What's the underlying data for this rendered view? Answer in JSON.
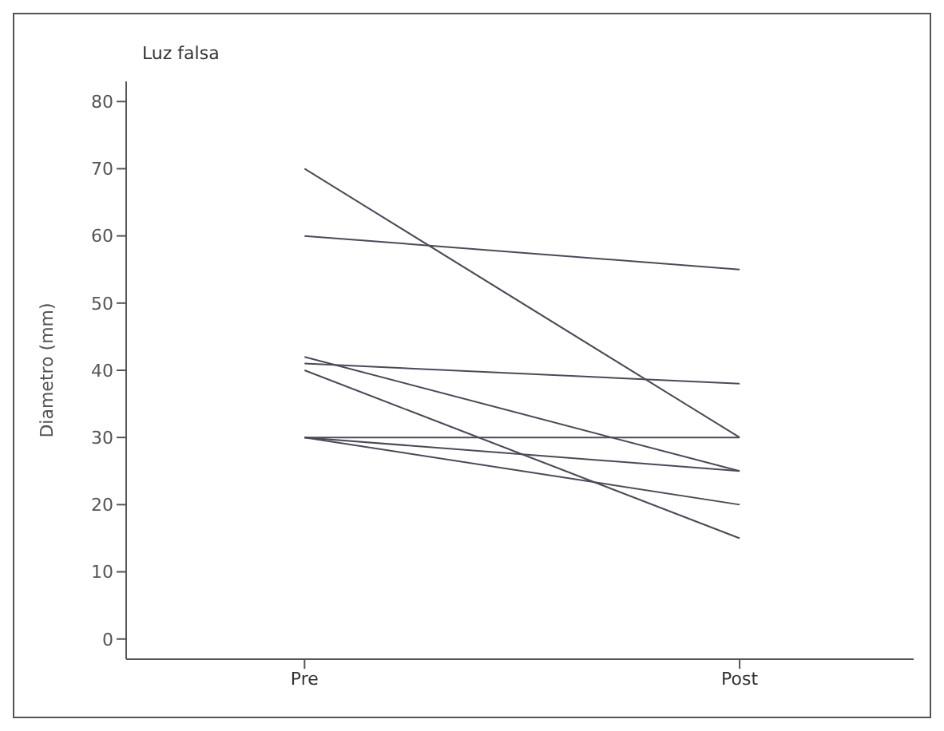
{
  "chart_data": {
    "type": "line",
    "title": "Luz falsa",
    "ylabel": "Diametro (mm)",
    "categories": [
      "Pre",
      "Post"
    ],
    "series": [
      {
        "color": "#4a4a58",
        "values": [
          70,
          30
        ]
      },
      {
        "color": "#4a4a58",
        "values": [
          60,
          55
        ]
      },
      {
        "color": "#4a4a58",
        "values": [
          41,
          38
        ]
      },
      {
        "color": "#4a4a58",
        "values": [
          42,
          25
        ]
      },
      {
        "color": "#4a4a58",
        "values": [
          40,
          15
        ]
      },
      {
        "color": "#4a4a58",
        "values": [
          30,
          30
        ]
      },
      {
        "color": "#4a4a58",
        "values": [
          30,
          25
        ]
      },
      {
        "color": "#4a4a58",
        "values": [
          30,
          20
        ]
      }
    ],
    "ylim": [
      -3,
      83
    ],
    "yticks": [
      0,
      10,
      20,
      30,
      40,
      50,
      60,
      70,
      80
    ],
    "grid": false,
    "marker": "none",
    "line_style": "solid"
  }
}
